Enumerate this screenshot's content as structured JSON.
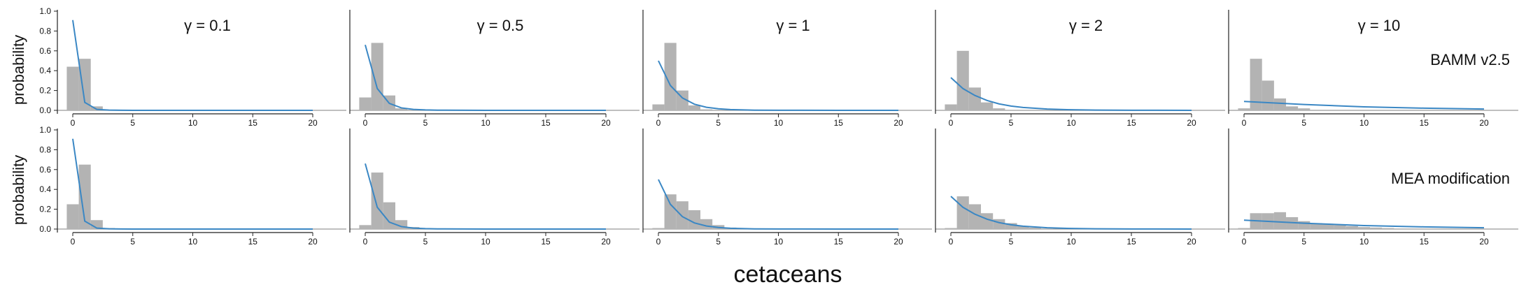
{
  "figure": {
    "x_title": "cetaceans",
    "y_title": "probability",
    "colors": {
      "bar": "#b3b3b3",
      "line": "#3a87c4",
      "axis": "#222222",
      "baseline": "#999999"
    }
  },
  "chart_data": [
    {
      "type": "bar",
      "row_label": "BAMM v2.5",
      "title": "γ = 0.1",
      "xlim": [
        0,
        20
      ],
      "ylim": [
        0,
        1
      ],
      "x_ticks": [
        0,
        5,
        10,
        15,
        20
      ],
      "y_ticks": [
        "0.0",
        "0.2",
        "0.4",
        "0.6",
        "0.8",
        "1.0"
      ],
      "bars_x": [
        0,
        1,
        2,
        3
      ],
      "bars_values": [
        0.44,
        0.52,
        0.04,
        0.005
      ],
      "line_x": [
        0,
        1,
        2,
        3,
        4,
        5,
        10,
        15,
        20
      ],
      "line_values": [
        0.91,
        0.08,
        0.01,
        0.003,
        0.001,
        0,
        0,
        0,
        0
      ]
    },
    {
      "type": "bar",
      "row_label": "BAMM v2.5",
      "title": "γ = 0.5",
      "xlim": [
        0,
        20
      ],
      "ylim": [
        0,
        1
      ],
      "x_ticks": [
        0,
        5,
        10,
        15,
        20
      ],
      "y_ticks": [
        "0.0",
        "0.2",
        "0.4",
        "0.6",
        "0.8",
        "1.0"
      ],
      "bars_x": [
        0,
        1,
        2,
        3,
        4
      ],
      "bars_values": [
        0.13,
        0.68,
        0.15,
        0.02,
        0.005
      ],
      "line_x": [
        0,
        1,
        2,
        3,
        4,
        5,
        6,
        10,
        15,
        20
      ],
      "line_values": [
        0.66,
        0.22,
        0.07,
        0.025,
        0.01,
        0.004,
        0.002,
        0,
        0,
        0
      ]
    },
    {
      "type": "bar",
      "row_label": "BAMM v2.5",
      "title": "γ = 1",
      "xlim": [
        0,
        20
      ],
      "ylim": [
        0,
        1
      ],
      "x_ticks": [
        0,
        5,
        10,
        15,
        20
      ],
      "y_ticks": [
        "0.0",
        "0.2",
        "0.4",
        "0.6",
        "0.8",
        "1.0"
      ],
      "bars_x": [
        0,
        1,
        2,
        3,
        4
      ],
      "bars_values": [
        0.06,
        0.68,
        0.2,
        0.05,
        0.01
      ],
      "line_x": [
        0,
        1,
        2,
        3,
        4,
        5,
        6,
        8,
        10,
        15,
        20
      ],
      "line_values": [
        0.5,
        0.25,
        0.125,
        0.062,
        0.031,
        0.016,
        0.008,
        0.002,
        0.001,
        0,
        0
      ]
    },
    {
      "type": "bar",
      "row_label": "BAMM v2.5",
      "title": "γ = 2",
      "xlim": [
        0,
        20
      ],
      "ylim": [
        0,
        1
      ],
      "x_ticks": [
        0,
        5,
        10,
        15,
        20
      ],
      "y_ticks": [
        "0.0",
        "0.2",
        "0.4",
        "0.6",
        "0.8",
        "1.0"
      ],
      "bars_x": [
        0,
        1,
        2,
        3,
        4,
        5
      ],
      "bars_values": [
        0.06,
        0.6,
        0.23,
        0.08,
        0.02,
        0.005
      ],
      "line_x": [
        0,
        1,
        2,
        3,
        4,
        5,
        6,
        8,
        10,
        12,
        15,
        20
      ],
      "line_values": [
        0.33,
        0.22,
        0.15,
        0.1,
        0.065,
        0.043,
        0.029,
        0.013,
        0.006,
        0.003,
        0.001,
        0
      ]
    },
    {
      "type": "bar",
      "row_label": "BAMM v2.5",
      "title": "γ = 10",
      "xlim": [
        0,
        20
      ],
      "ylim": [
        0,
        1
      ],
      "x_ticks": [
        0,
        5,
        10,
        15,
        20
      ],
      "y_ticks": [
        "0.0",
        "0.2",
        "0.4",
        "0.6",
        "0.8",
        "1.0"
      ],
      "bars_x": [
        0,
        1,
        2,
        3,
        4,
        5
      ],
      "bars_values": [
        0.02,
        0.52,
        0.3,
        0.12,
        0.04,
        0.02
      ],
      "line_x": [
        0,
        5,
        10,
        15,
        20
      ],
      "line_values": [
        0.09,
        0.059,
        0.035,
        0.022,
        0.013
      ]
    },
    {
      "type": "bar",
      "row_label": "MEA modification",
      "title": "",
      "xlim": [
        0,
        20
      ],
      "ylim": [
        0,
        1
      ],
      "x_ticks": [
        0,
        5,
        10,
        15,
        20
      ],
      "y_ticks": [
        "0.0",
        "0.2",
        "0.4",
        "0.6",
        "0.8",
        "1.0"
      ],
      "bars_x": [
        0,
        1,
        2,
        3
      ],
      "bars_values": [
        0.25,
        0.65,
        0.09,
        0.01
      ],
      "line_x": [
        0,
        1,
        2,
        3,
        4,
        5,
        10,
        15,
        20
      ],
      "line_values": [
        0.91,
        0.08,
        0.01,
        0.003,
        0.001,
        0,
        0,
        0,
        0
      ]
    },
    {
      "type": "bar",
      "row_label": "MEA modification",
      "title": "",
      "xlim": [
        0,
        20
      ],
      "ylim": [
        0,
        1
      ],
      "x_ticks": [
        0,
        5,
        10,
        15,
        20
      ],
      "y_ticks": [
        "0.0",
        "0.2",
        "0.4",
        "0.6",
        "0.8",
        "1.0"
      ],
      "bars_x": [
        0,
        1,
        2,
        3,
        4,
        5
      ],
      "bars_values": [
        0.04,
        0.57,
        0.27,
        0.09,
        0.02,
        0.005
      ],
      "line_x": [
        0,
        1,
        2,
        3,
        4,
        5,
        6,
        10,
        15,
        20
      ],
      "line_values": [
        0.66,
        0.22,
        0.07,
        0.025,
        0.01,
        0.004,
        0.002,
        0,
        0,
        0
      ]
    },
    {
      "type": "bar",
      "row_label": "MEA modification",
      "title": "",
      "xlim": [
        0,
        20
      ],
      "ylim": [
        0,
        1
      ],
      "x_ticks": [
        0,
        5,
        10,
        15,
        20
      ],
      "y_ticks": [
        "0.0",
        "0.2",
        "0.4",
        "0.6",
        "0.8",
        "1.0"
      ],
      "bars_x": [
        0,
        1,
        2,
        3,
        4,
        5,
        6,
        7
      ],
      "bars_values": [
        0.01,
        0.35,
        0.28,
        0.19,
        0.1,
        0.04,
        0.015,
        0.005
      ],
      "line_x": [
        0,
        1,
        2,
        3,
        4,
        5,
        6,
        8,
        10,
        15,
        20
      ],
      "line_values": [
        0.5,
        0.25,
        0.125,
        0.062,
        0.031,
        0.016,
        0.008,
        0.002,
        0.001,
        0,
        0
      ]
    },
    {
      "type": "bar",
      "row_label": "MEA modification",
      "title": "",
      "xlim": [
        0,
        20
      ],
      "ylim": [
        0,
        1
      ],
      "x_ticks": [
        0,
        5,
        10,
        15,
        20
      ],
      "y_ticks": [
        "0.0",
        "0.2",
        "0.4",
        "0.6",
        "0.8",
        "1.0"
      ],
      "bars_x": [
        0,
        1,
        2,
        3,
        4,
        5,
        6,
        7,
        8
      ],
      "bars_values": [
        0.01,
        0.33,
        0.25,
        0.16,
        0.1,
        0.06,
        0.03,
        0.015,
        0.005
      ],
      "line_x": [
        0,
        1,
        2,
        3,
        4,
        5,
        6,
        8,
        10,
        12,
        15,
        20
      ],
      "line_values": [
        0.33,
        0.22,
        0.15,
        0.1,
        0.065,
        0.043,
        0.029,
        0.013,
        0.006,
        0.003,
        0.001,
        0
      ]
    },
    {
      "type": "bar",
      "row_label": "MEA modification",
      "title": "",
      "xlim": [
        0,
        20
      ],
      "ylim": [
        0,
        1
      ],
      "x_ticks": [
        0,
        5,
        10,
        15,
        20
      ],
      "y_ticks": [
        "0.0",
        "0.2",
        "0.4",
        "0.6",
        "0.8",
        "1.0"
      ],
      "bars_x": [
        0,
        1,
        2,
        3,
        4,
        5,
        6,
        7,
        8,
        9,
        10,
        11,
        12
      ],
      "bars_values": [
        0.01,
        0.16,
        0.16,
        0.17,
        0.12,
        0.08,
        0.06,
        0.05,
        0.04,
        0.03,
        0.02,
        0.015,
        0.01
      ],
      "line_x": [
        0,
        5,
        10,
        15,
        20
      ],
      "line_values": [
        0.09,
        0.059,
        0.035,
        0.022,
        0.013
      ]
    }
  ]
}
